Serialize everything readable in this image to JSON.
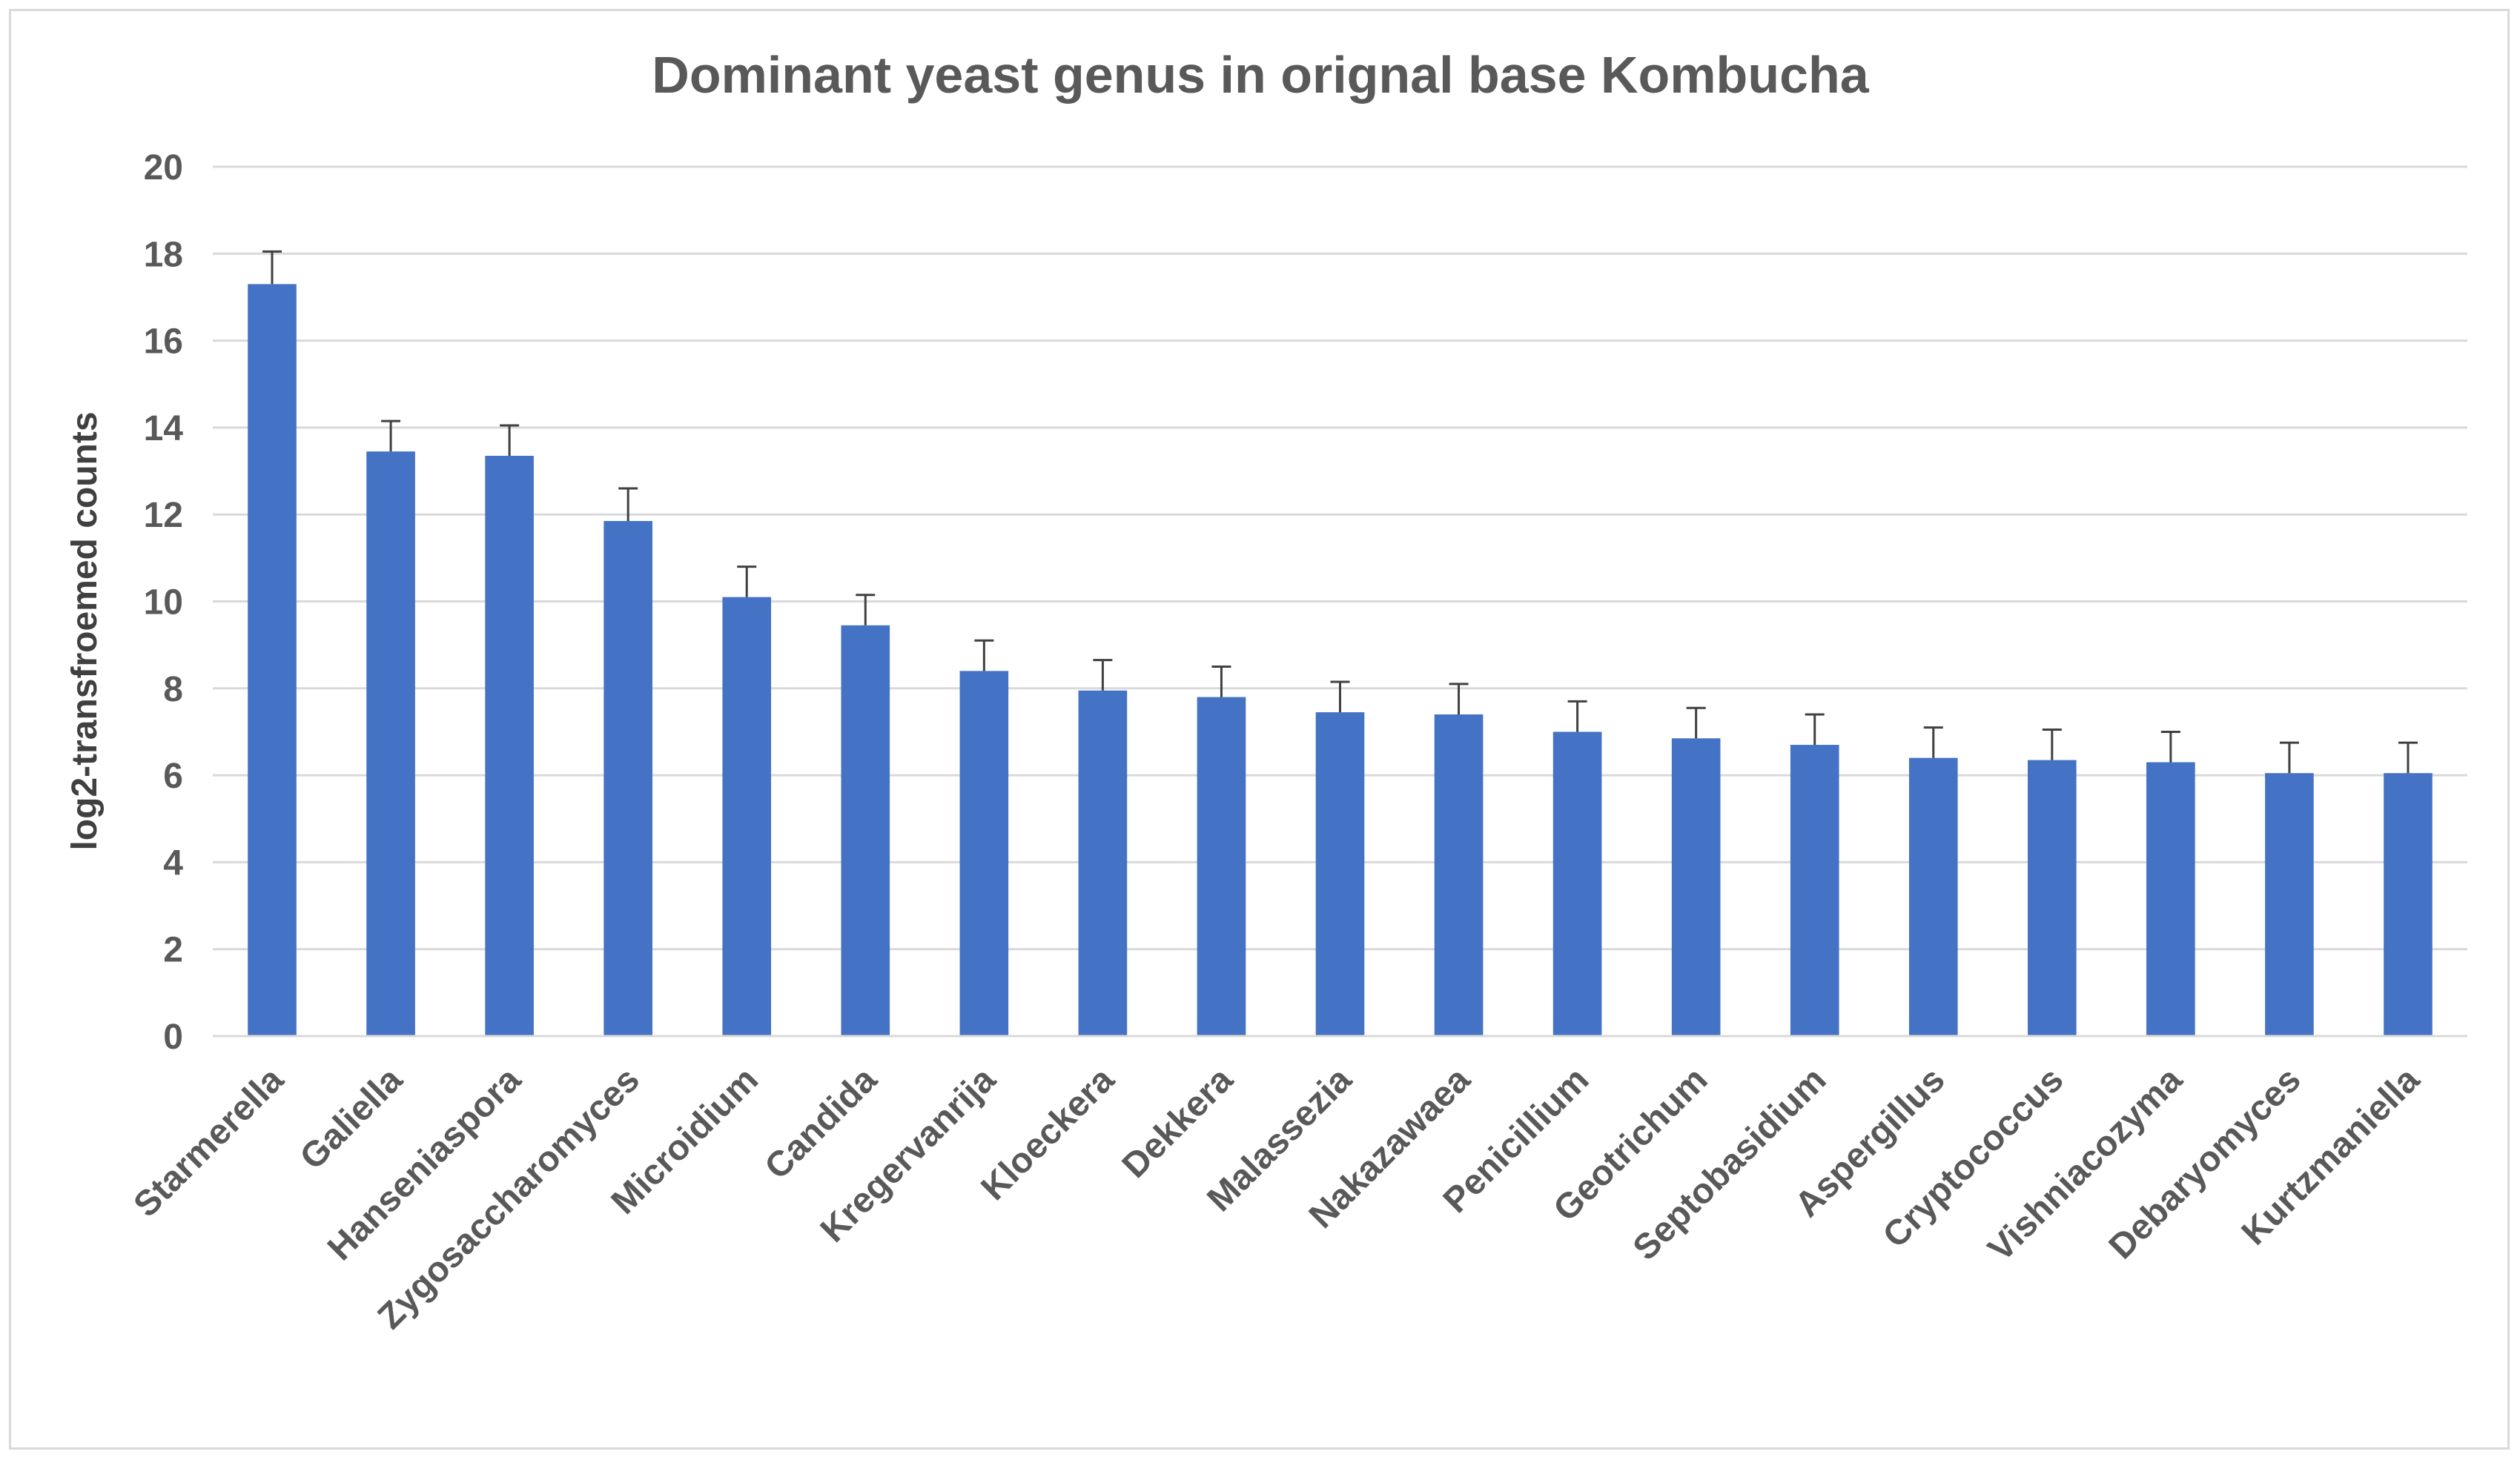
{
  "chart_data": {
    "type": "bar",
    "title": "Dominant yeast genus in orignal base Kombucha",
    "xlabel": "",
    "ylabel": "log2-transfroemed counts",
    "ylim": [
      0,
      20
    ],
    "yticks": [
      0,
      2,
      4,
      6,
      8,
      10,
      12,
      14,
      16,
      18,
      20
    ],
    "grid": true,
    "legend": "none",
    "bar_color": "#4472c4",
    "error_bar_color": "#404040",
    "categories": [
      "Starmerella",
      "Galiella",
      "Hanseniaspora",
      "Zygosaccharomyces",
      "Microidium",
      "Candida",
      "Kregervanrija",
      "Kloeckera",
      "Dekkera",
      "Malassezia",
      "Nakazawaea",
      "Penicillium",
      "Geotrichum",
      "Septobasidium",
      "Aspergillus",
      "Cryptococcus",
      "Vishniacozyma",
      "Debaryomyces",
      "Kurtzmaniella"
    ],
    "values": [
      17.3,
      13.45,
      13.35,
      11.85,
      10.1,
      9.45,
      8.4,
      7.95,
      7.8,
      7.45,
      7.4,
      7.0,
      6.85,
      6.7,
      6.4,
      6.35,
      6.3,
      6.05,
      6.05
    ],
    "errors": [
      0.75,
      0.7,
      0.7,
      0.75,
      0.7,
      0.7,
      0.7,
      0.7,
      0.7,
      0.7,
      0.7,
      0.7,
      0.7,
      0.7,
      0.7,
      0.7,
      0.7,
      0.7,
      0.7
    ]
  }
}
